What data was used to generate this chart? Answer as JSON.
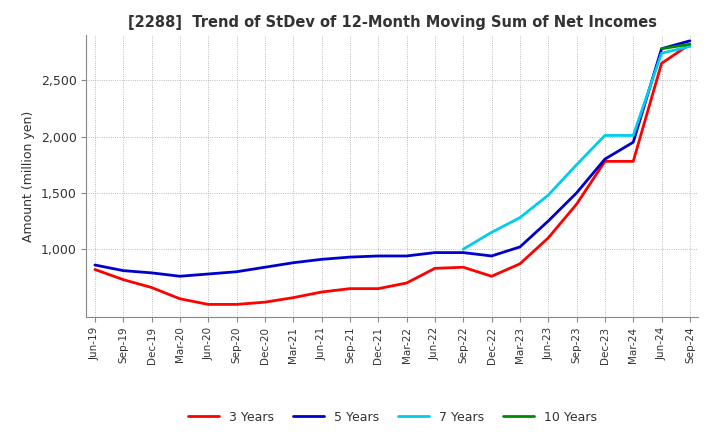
{
  "title": "[2288]  Trend of StDev of 12-Month Moving Sum of Net Incomes",
  "ylabel": "Amount (million yen)",
  "yticks": [
    1000,
    1500,
    2000,
    2500
  ],
  "ylim": [
    400,
    2900
  ],
  "background_color": "#ffffff",
  "grid_color": "#aaaaaa",
  "legend_entries": [
    "3 Years",
    "5 Years",
    "7 Years",
    "10 Years"
  ],
  "line_colors": [
    "#ff0000",
    "#0000cc",
    "#00ccee",
    "#008800"
  ],
  "x_labels": [
    "Jun-19",
    "Sep-19",
    "Dec-19",
    "Mar-20",
    "Jun-20",
    "Sep-20",
    "Dec-20",
    "Mar-21",
    "Jun-21",
    "Sep-21",
    "Dec-21",
    "Mar-22",
    "Jun-22",
    "Sep-22",
    "Dec-22",
    "Mar-23",
    "Jun-23",
    "Sep-23",
    "Dec-23",
    "Mar-24",
    "Jun-24",
    "Sep-24"
  ],
  "series_3yr": [
    820,
    730,
    660,
    560,
    510,
    510,
    530,
    570,
    620,
    650,
    650,
    700,
    830,
    840,
    760,
    870,
    1100,
    1400,
    1780,
    1780,
    2650,
    2820
  ],
  "series_5yr": [
    860,
    810,
    790,
    760,
    780,
    800,
    840,
    880,
    910,
    930,
    940,
    940,
    970,
    970,
    940,
    1020,
    1250,
    1500,
    1800,
    1950,
    2780,
    2850
  ],
  "series_7yr": [
    null,
    null,
    null,
    null,
    null,
    null,
    null,
    null,
    null,
    null,
    null,
    null,
    null,
    1000,
    1150,
    1280,
    1480,
    1750,
    2010,
    2010,
    2740,
    2800
  ],
  "series_10yr": [
    null,
    null,
    null,
    null,
    null,
    null,
    null,
    null,
    null,
    null,
    null,
    null,
    null,
    null,
    null,
    null,
    null,
    null,
    null,
    null,
    2780,
    2820
  ]
}
